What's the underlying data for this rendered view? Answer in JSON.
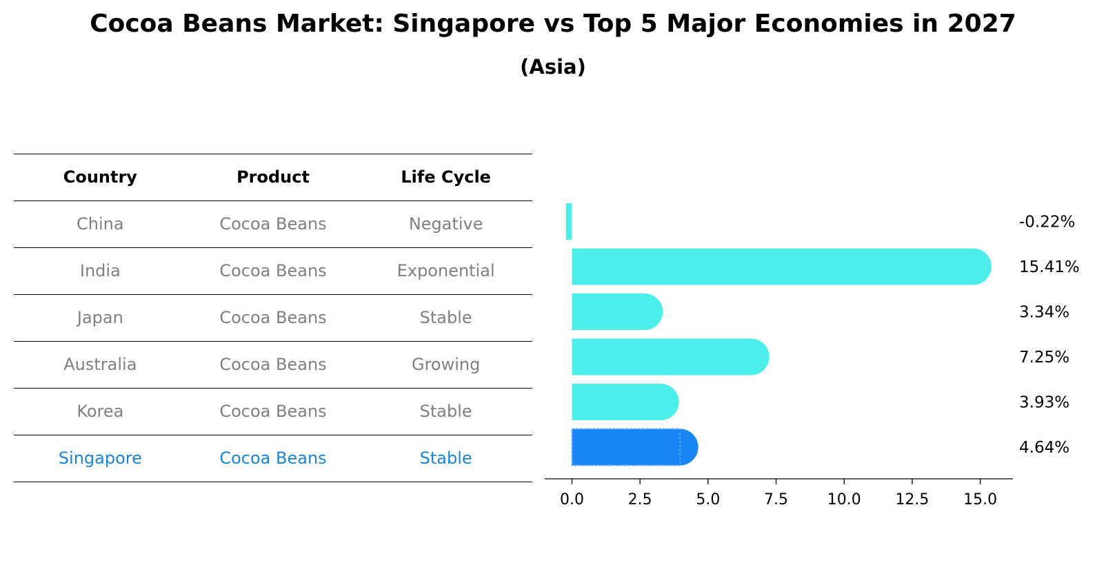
{
  "header": {
    "title": "Cocoa Beans Market: Singapore vs Top 5 Major Economies in 2027",
    "subtitle": "(Asia)"
  },
  "table": {
    "columns": [
      "Country",
      "Product",
      "Life Cycle"
    ],
    "rows": [
      {
        "country": "China",
        "product": "Cocoa Beans",
        "life_cycle": "Negative"
      },
      {
        "country": "India",
        "product": "Cocoa Beans",
        "life_cycle": "Exponential"
      },
      {
        "country": "Japan",
        "product": "Cocoa Beans",
        "life_cycle": "Stable"
      },
      {
        "country": "Australia",
        "product": "Cocoa Beans",
        "life_cycle": "Growing"
      },
      {
        "country": "Korea",
        "product": "Cocoa Beans",
        "life_cycle": "Stable"
      },
      {
        "country": "Singapore",
        "product": "Cocoa Beans",
        "life_cycle": "Stable"
      }
    ],
    "highlight_row": "Singapore"
  },
  "colors": {
    "bar": "#4deeea",
    "highlight_bar": "#1a85f6",
    "highlight_text": "#1a85d6",
    "muted_text": "#808080"
  },
  "chart_data": {
    "type": "bar",
    "orientation": "horizontal",
    "categories": [
      "China",
      "India",
      "Japan",
      "Australia",
      "Korea",
      "Singapore"
    ],
    "values": [
      -0.22,
      15.41,
      3.34,
      7.25,
      3.93,
      4.64
    ],
    "value_labels": [
      "-0.22%",
      "15.41%",
      "3.34%",
      "7.25%",
      "3.93%",
      "4.64%"
    ],
    "highlight": "Singapore",
    "xlim": [
      -1,
      16.2
    ],
    "xticks": [
      0.0,
      2.5,
      5.0,
      7.5,
      10.0,
      12.5,
      15.0
    ],
    "xtick_labels": [
      "0.0",
      "2.5",
      "5.0",
      "7.5",
      "10.0",
      "12.5",
      "15.0"
    ],
    "grid": false
  }
}
